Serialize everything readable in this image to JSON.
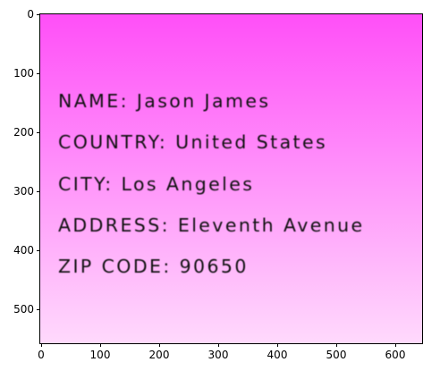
{
  "image_text": {
    "lines": [
      "NAME: Jason James",
      "COUNTRY: United States",
      "CITY: Los Angeles",
      "ADDRESS: Eleventh Avenue",
      "ZIP CODE: 90650"
    ]
  },
  "colors": {
    "gradient_top": "#ff4ff8",
    "gradient_bottom": "#ffd9fc",
    "text": "#111111"
  },
  "axes": {
    "x_ticks": [
      "0",
      "100",
      "200",
      "300",
      "400",
      "500",
      "600"
    ],
    "y_ticks": [
      "0",
      "100",
      "200",
      "300",
      "400",
      "500"
    ]
  }
}
